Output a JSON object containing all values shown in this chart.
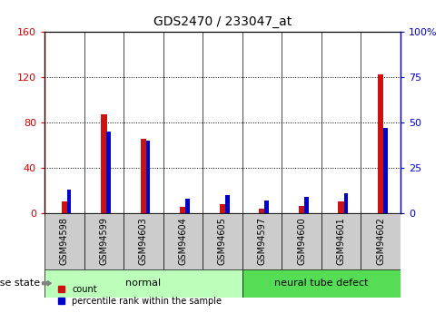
{
  "title": "GDS2470 / 233047_at",
  "samples": [
    "GSM94598",
    "GSM94599",
    "GSM94603",
    "GSM94604",
    "GSM94605",
    "GSM94597",
    "GSM94600",
    "GSM94601",
    "GSM94602"
  ],
  "count_values": [
    10,
    87,
    65,
    5,
    8,
    4,
    6,
    10,
    122
  ],
  "percentile_values": [
    13,
    45,
    40,
    8,
    10,
    7,
    9,
    11,
    47
  ],
  "groups": [
    {
      "label": "normal",
      "span": [
        0,
        5
      ],
      "color": "#bbffbb"
    },
    {
      "label": "neural tube defect",
      "span": [
        5,
        9
      ],
      "color": "#55dd55"
    }
  ],
  "ylim_left": [
    0,
    160
  ],
  "ylim_right": [
    0,
    100
  ],
  "yticks_left": [
    0,
    40,
    80,
    120,
    160
  ],
  "yticks_right": [
    0,
    25,
    50,
    75,
    100
  ],
  "left_tick_labels": [
    "0",
    "40",
    "80",
    "120",
    "160"
  ],
  "right_tick_labels": [
    "0",
    "25",
    "50",
    "75",
    "100%"
  ],
  "left_color": "#cc0000",
  "right_color": "#0000cc",
  "bar_color_count": "#cc1111",
  "bar_color_pct": "#0000cc",
  "bar_width": 0.15,
  "legend_label_count": "count",
  "legend_label_pct": "percentile rank within the sample",
  "disease_state_label": "disease state",
  "sample_bg_color": "#cccccc",
  "grid_style": "dotted"
}
